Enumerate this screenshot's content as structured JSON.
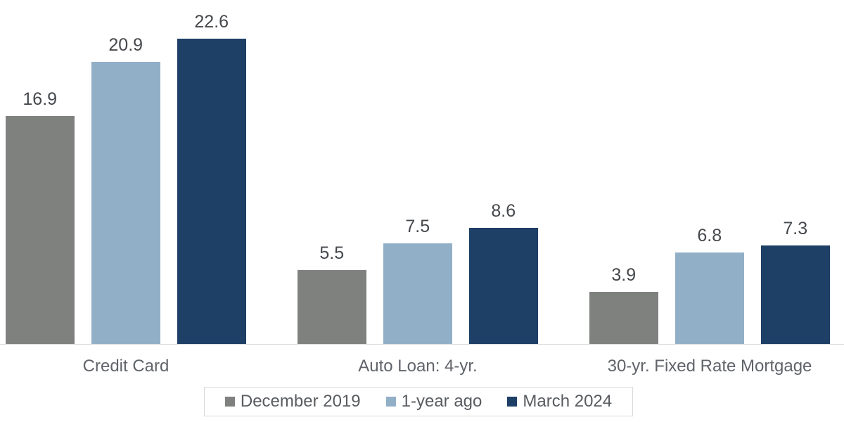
{
  "chart_data": {
    "type": "bar",
    "title": "",
    "xlabel": "",
    "ylabel": "",
    "categories": [
      "Credit Card",
      "Auto Loan: 4-yr.",
      "30-yr. Fixed Rate Mortgage"
    ],
    "series": [
      {
        "name": "December 2019",
        "color": "#7f817f",
        "values": [
          16.9,
          5.5,
          3.9
        ]
      },
      {
        "name": "1-year ago",
        "color": "#92afc8",
        "values": [
          20.9,
          7.5,
          6.8
        ]
      },
      {
        "name": "March 2024",
        "color": "#1e3f66",
        "values": [
          22.6,
          8.6,
          7.3
        ]
      }
    ],
    "data_labels": [
      "16.9",
      "20.9",
      "22.6",
      "5.5",
      "7.5",
      "8.6",
      "3.9",
      "6.8",
      "7.3"
    ],
    "ylim": [
      0,
      25.5
    ],
    "grid": false,
    "axis_line_color": "#d9d9d9",
    "legend_position": "bottom-center",
    "legend_border_color": "#d9d9d9"
  }
}
